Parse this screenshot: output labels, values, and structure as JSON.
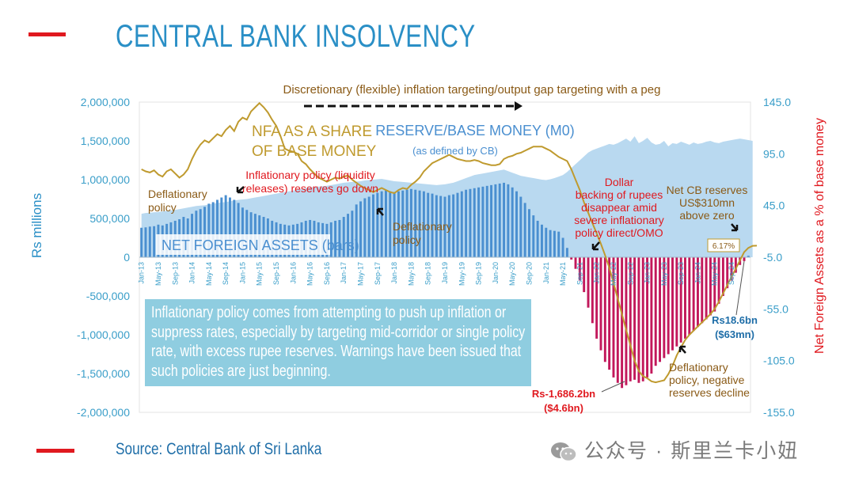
{
  "page": {
    "title": "CENTRAL BANK INSOLVENCY",
    "source": "Source: Central Bank of Sri Lanka",
    "watermark": "公众号 · 斯里兰卡小妞",
    "colors": {
      "accent_red": "#e0191f",
      "title_blue": "#2a8fc6",
      "bar_blue": "#4a8fd0",
      "area_blue": "#b9d9f0",
      "line_gold": "#bf9a2e",
      "neg_bar": "#c2185b"
    }
  },
  "chart_data": {
    "type": "bar",
    "title": "",
    "ylabel": "Rs millions",
    "y2label": "Net Foreign Assets as a % of base money",
    "ylim": [
      -2000000,
      2000000
    ],
    "y2lim": [
      -155,
      145
    ],
    "yticks": [
      "2,000,000",
      "1,500,000",
      "1,000,000",
      "500,000",
      "0",
      "-500,000",
      "-1,000,000",
      "-1,500,000",
      "-2,000,000"
    ],
    "y2ticks": [
      "145.0",
      "95.0",
      "45.0",
      "-5.0",
      "-55.0",
      "-105.0",
      "-155.0"
    ],
    "xticks": [
      "Jan-13",
      "May-13",
      "Sep-13",
      "Jan-14",
      "May-14",
      "Sep-14",
      "Jan-15",
      "May-15",
      "Sep-15",
      "Jan-16",
      "May-16",
      "Sep-16",
      "Jan-17",
      "May-17",
      "Sep-17",
      "Jan-18",
      "May-18",
      "Sep-18",
      "Jan-19",
      "May-19",
      "Sep-19",
      "Jan-20",
      "May-20",
      "Sep-20",
      "Jan-21",
      "May-21",
      "Sep-21",
      "Jan-22",
      "May-22",
      "Sep-22",
      "Jan-23",
      "May-23",
      "Sep-23",
      "Jan-24",
      "May-24",
      "Sep-24"
    ],
    "series": [
      {
        "name": "NET FOREIGN ASSETS (bars)",
        "kind": "bar",
        "values": [
          380000,
          385000,
          395000,
          400000,
          420000,
          410000,
          430000,
          450000,
          470000,
          490000,
          520000,
          500000,
          560000,
          600000,
          620000,
          650000,
          690000,
          710000,
          740000,
          770000,
          800000,
          770000,
          740000,
          700000,
          640000,
          610000,
          580000,
          560000,
          540000,
          520000,
          500000,
          470000,
          450000,
          430000,
          420000,
          410000,
          420000,
          430000,
          450000,
          470000,
          480000,
          470000,
          450000,
          440000,
          430000,
          450000,
          470000,
          480000,
          520000,
          560000,
          600000,
          680000,
          720000,
          760000,
          780000,
          810000,
          830000,
          850000,
          860000,
          850000,
          840000,
          850000,
          860000,
          870000,
          880000,
          870000,
          860000,
          850000,
          830000,
          820000,
          800000,
          790000,
          780000,
          800000,
          810000,
          830000,
          850000,
          870000,
          880000,
          890000,
          900000,
          910000,
          920000,
          930000,
          940000,
          950000,
          960000,
          940000,
          900000,
          850000,
          780000,
          700000,
          620000,
          540000,
          470000,
          420000,
          380000,
          350000,
          340000,
          330000,
          250000,
          120000,
          -30000,
          -150000,
          -300000,
          -450000,
          -650000,
          -850000,
          -1050000,
          -1200000,
          -1350000,
          -1450000,
          -1550000,
          -1620000,
          -1686200,
          -1650000,
          -1600000,
          -1580000,
          -1620000,
          -1600000,
          -1550000,
          -1500000,
          -1400000,
          -1350000,
          -1300000,
          -1250000,
          -1200000,
          -1150000,
          -1100000,
          -1050000,
          -1000000,
          -950000,
          -900000,
          -850000,
          -800000,
          -750000,
          -700000,
          -600000,
          -500000,
          -400000,
          -300000,
          -200000,
          -100000,
          -50000,
          18600
        ]
      },
      {
        "name": "RESERVE/BASE MONEY (M0)",
        "kind": "area",
        "values": [
          560000,
          570000,
          575000,
          580000,
          585000,
          590000,
          600000,
          605000,
          610000,
          620000,
          630000,
          640000,
          650000,
          660000,
          665000,
          670000,
          680000,
          690000,
          700000,
          705000,
          710000,
          720000,
          730000,
          740000,
          745000,
          750000,
          760000,
          770000,
          780000,
          790000,
          800000,
          810000,
          820000,
          830000,
          840000,
          850000,
          860000,
          870000,
          880000,
          890000,
          900000,
          905000,
          910000,
          915000,
          920000,
          930000,
          940000,
          950000,
          960000,
          965000,
          970000,
          975000,
          980000,
          990000,
          995000,
          1000000,
          1005000,
          1010000,
          1000000,
          990000,
          980000,
          975000,
          970000,
          965000,
          960000,
          955000,
          950000,
          945000,
          940000,
          935000,
          930000,
          935000,
          940000,
          950000,
          960000,
          980000,
          1000000,
          1020000,
          1040000,
          1060000,
          1070000,
          1080000,
          1090000,
          1100000,
          1110000,
          1120000,
          1130000,
          1110000,
          1090000,
          1070000,
          1050000,
          1040000,
          1030000,
          1020000,
          1010000,
          1000000,
          995000,
          1005000,
          1020000,
          1040000,
          1060000,
          1100000,
          1150000,
          1200000,
          1250000,
          1300000,
          1350000,
          1380000,
          1400000,
          1420000,
          1440000,
          1460000,
          1450000,
          1470000,
          1500000,
          1530000,
          1490000,
          1560000,
          1470000,
          1500000,
          1540000,
          1480000,
          1450000,
          1460000,
          1500000,
          1430000,
          1470000,
          1460000,
          1490000,
          1470000,
          1450000,
          1480000,
          1460000,
          1470000,
          1490000,
          1500000,
          1480000,
          1470000,
          1490000,
          1500000,
          1510000,
          1520000,
          1530000,
          1520000,
          1510000,
          1500000
        ]
      },
      {
        "name": "NFA AS A SHARE OF BASE MONEY",
        "kind": "line",
        "axis": "y2",
        "values": [
          80,
          78,
          77,
          79,
          75,
          73,
          78,
          80,
          76,
          72,
          75,
          80,
          90,
          98,
          104,
          108,
          106,
          110,
          114,
          112,
          118,
          122,
          117,
          126,
          130,
          128,
          136,
          140,
          144,
          140,
          135,
          128,
          122,
          112,
          100,
          98,
          97,
          95,
          88,
          85,
          80,
          76,
          72,
          70,
          68,
          70,
          72,
          71,
          73,
          74,
          70,
          67,
          64,
          62,
          60,
          58,
          60,
          62,
          60,
          58,
          57,
          60,
          62,
          61,
          65,
          68,
          72,
          78,
          82,
          86,
          88,
          90,
          92,
          94,
          92,
          90,
          89,
          88,
          88,
          89,
          88,
          86,
          85,
          84,
          84,
          85,
          90,
          92,
          93,
          95,
          96,
          98,
          100,
          102,
          102,
          102,
          100,
          98,
          95,
          92,
          90,
          88,
          80,
          70,
          60,
          48,
          38,
          28,
          18,
          8,
          -3,
          -15,
          -30,
          -45,
          -60,
          -75,
          -90,
          -105,
          -115,
          -120,
          -122,
          -125,
          -126,
          -125,
          -124,
          -118,
          -110,
          -100,
          -92,
          -85,
          -80,
          -76,
          -72,
          -68,
          -64,
          -60,
          -55,
          -48,
          -40,
          -32,
          -24,
          -16,
          -8,
          0,
          4,
          6,
          6.17
        ]
      }
    ]
  },
  "annotations": {
    "top_policy": "Discretionary (flexible) inflation targeting/output gap targeting with a peg",
    "nfa_share_1": "NFA AS A SHARE",
    "nfa_share_2": "OF BASE MONEY",
    "reserve_1": "RESERVE/BASE MONEY (M0)",
    "reserve_2": "(as defined by CB)",
    "inflationary_1": "Inflationary policy (liquidity",
    "inflationary_2": "releases) reserves go down",
    "deflationary_a1": "Deflationary",
    "deflationary_a2": "policy",
    "deflationary_b1": "Deflationary",
    "deflationary_b2": "policy",
    "dollar_1": "Dollar",
    "dollar_2": "backing of rupees",
    "dollar_3": "disappear amid",
    "dollar_4": "severe inflationary",
    "dollar_5": "policy direct/OMO",
    "netcb_1": "Net CB reserves",
    "netcb_2": "US$310mn",
    "netcb_3": "above zero",
    "pct_label": "6.17%",
    "nfa_bars_label": "NET FOREIGN ASSETS (bars)",
    "rs186_1": "Rs18.6bn",
    "rs186_2": "($63mn)",
    "low_1": "Rs-1,686.2bn",
    "low_2": "($4.6bn)",
    "defl_neg_1": "Deflationary",
    "defl_neg_2": "policy, negative",
    "defl_neg_3": "reserves decline",
    "infobox": "Inflationary policy comes from attempting to push up inflation or suppress rates, especially by targeting mid-corridor or single policy rate, with excess rupee reserves. Warnings have been issued that such policies are just beginning."
  }
}
